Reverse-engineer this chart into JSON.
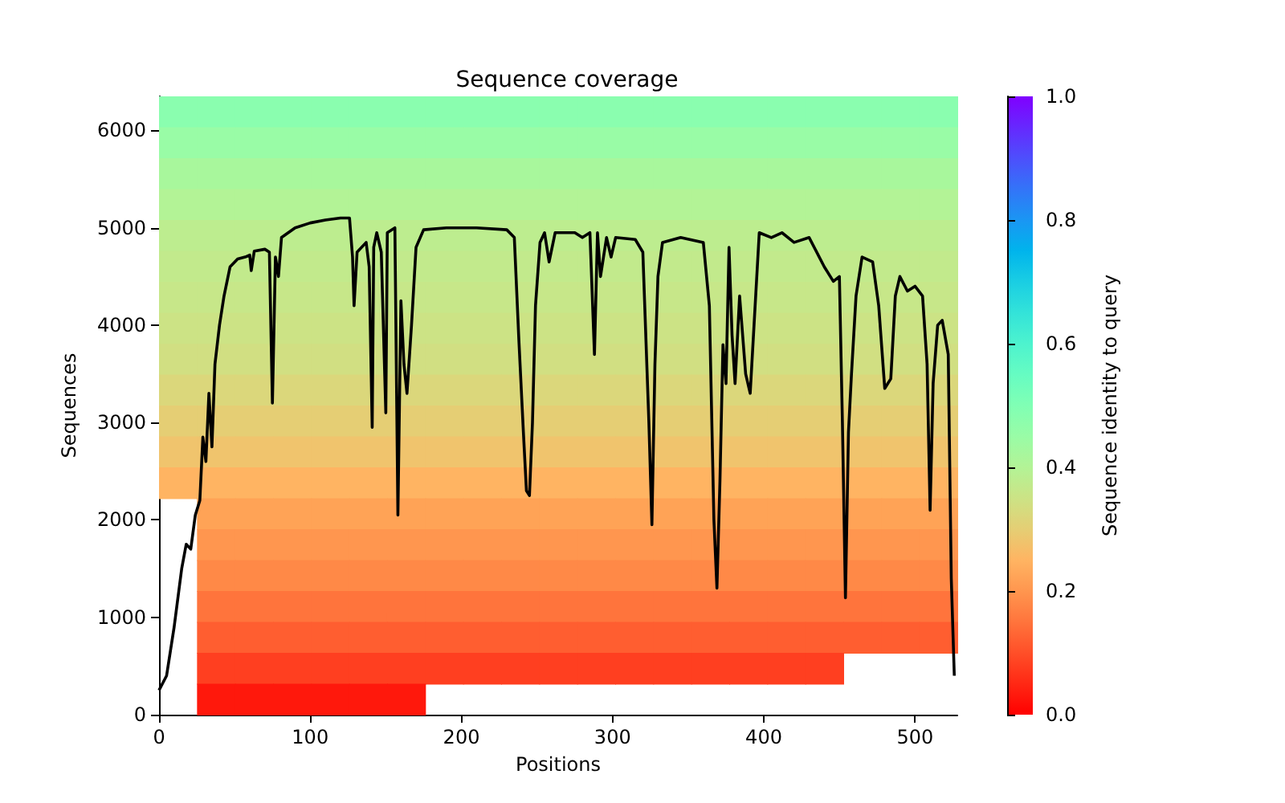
{
  "chart_data": {
    "type": "heatmap",
    "title": "Sequence coverage",
    "xlabel": "Positions",
    "ylabel": "Sequences",
    "clabel": "Sequence identity to query",
    "xlim": [
      0,
      528
    ],
    "xticks": [
      0,
      100,
      200,
      300,
      400,
      500
    ],
    "ylim": [
      0,
      6350
    ],
    "yticks": [
      0,
      1000,
      2000,
      3000,
      4000,
      5000,
      6000
    ],
    "clim": [
      0,
      1
    ],
    "cticks": [
      {
        "value": 0,
        "label": "0.0"
      },
      {
        "value": 0.2,
        "label": "0.2"
      },
      {
        "value": 0.4,
        "label": "0.4"
      },
      {
        "value": 0.6,
        "label": "0.6"
      },
      {
        "value": 0.8,
        "label": "0.8"
      },
      {
        "value": 1,
        "label": "1.0"
      }
    ],
    "cells": [
      [
        0.48,
        0.48,
        0.48,
        0.48,
        0.48,
        0.48,
        0.48,
        0.48,
        0.48,
        0.48,
        0.48,
        0.48,
        0.48,
        0.48,
        0.48,
        0.48,
        0.48,
        0.48,
        0.48,
        0.48,
        0.48
      ],
      [
        0.45,
        0.45,
        0.45,
        0.45,
        0.45,
        0.45,
        0.45,
        0.45,
        0.45,
        0.45,
        0.45,
        0.45,
        0.45,
        0.45,
        0.45,
        0.45,
        0.45,
        0.45,
        0.45,
        0.45,
        0.45
      ],
      [
        0.42,
        0.42,
        0.42,
        0.42,
        0.42,
        0.42,
        0.42,
        0.42,
        0.42,
        0.42,
        0.42,
        0.42,
        0.42,
        0.42,
        0.42,
        0.42,
        0.42,
        0.42,
        0.42,
        0.42,
        0.42
      ],
      [
        0.4,
        0.4,
        0.4,
        0.4,
        0.4,
        0.4,
        0.4,
        0.4,
        0.4,
        0.4,
        0.4,
        0.4,
        0.4,
        0.4,
        0.4,
        0.4,
        0.4,
        0.4,
        0.4,
        0.4,
        0.4
      ],
      [
        0.38,
        0.38,
        0.38,
        0.38,
        0.38,
        0.38,
        0.38,
        0.38,
        0.38,
        0.38,
        0.38,
        0.38,
        0.38,
        0.38,
        0.38,
        0.38,
        0.38,
        0.38,
        0.38,
        0.38,
        0.38
      ],
      [
        0.37,
        0.37,
        0.37,
        0.37,
        0.37,
        0.37,
        0.37,
        0.37,
        0.37,
        0.37,
        0.37,
        0.37,
        0.37,
        0.37,
        0.37,
        0.37,
        0.37,
        0.37,
        0.37,
        0.37,
        0.37
      ],
      [
        0.36,
        0.36,
        0.36,
        0.36,
        0.36,
        0.36,
        0.36,
        0.36,
        0.36,
        0.36,
        0.36,
        0.36,
        0.36,
        0.36,
        0.36,
        0.36,
        0.36,
        0.36,
        0.36,
        0.36,
        0.36
      ],
      [
        0.35,
        0.35,
        0.35,
        0.35,
        0.35,
        0.35,
        0.35,
        0.35,
        0.35,
        0.35,
        0.35,
        0.35,
        0.35,
        0.35,
        0.35,
        0.35,
        0.35,
        0.35,
        0.35,
        0.35,
        0.35
      ],
      [
        0.34,
        0.34,
        0.34,
        0.34,
        0.34,
        0.34,
        0.34,
        0.34,
        0.34,
        0.34,
        0.34,
        0.34,
        0.34,
        0.34,
        0.34,
        0.34,
        0.34,
        0.34,
        0.34,
        0.34,
        0.34
      ],
      [
        0.32,
        0.32,
        0.32,
        0.32,
        0.32,
        0.32,
        0.32,
        0.32,
        0.32,
        0.32,
        0.32,
        0.32,
        0.32,
        0.32,
        0.32,
        0.32,
        0.32,
        0.32,
        0.32,
        0.32,
        0.32
      ],
      [
        0.3,
        0.3,
        0.3,
        0.3,
        0.3,
        0.3,
        0.3,
        0.3,
        0.3,
        0.3,
        0.3,
        0.3,
        0.3,
        0.3,
        0.3,
        0.3,
        0.3,
        0.3,
        0.3,
        0.3,
        0.3
      ],
      [
        0.28,
        0.28,
        0.28,
        0.28,
        0.28,
        0.28,
        0.28,
        0.28,
        0.28,
        0.28,
        0.28,
        0.28,
        0.28,
        0.28,
        0.28,
        0.28,
        0.28,
        0.28,
        0.28,
        0.28,
        0.28
      ],
      [
        0.25,
        0.25,
        0.25,
        0.25,
        0.25,
        0.25,
        0.25,
        0.25,
        0.25,
        0.25,
        0.25,
        0.25,
        0.25,
        0.25,
        0.25,
        0.25,
        0.25,
        0.25,
        0.25,
        0.25,
        0.25
      ],
      [
        null,
        0.22,
        0.22,
        0.22,
        0.22,
        0.22,
        0.22,
        0.22,
        0.22,
        0.22,
        0.22,
        0.22,
        0.22,
        0.22,
        0.22,
        0.22,
        0.22,
        0.22,
        0.22,
        0.22,
        0.22
      ],
      [
        null,
        0.2,
        0.2,
        0.2,
        0.2,
        0.2,
        0.2,
        0.2,
        0.2,
        0.2,
        0.2,
        0.2,
        0.2,
        0.2,
        0.2,
        0.2,
        0.2,
        0.2,
        0.2,
        0.2,
        0.2
      ],
      [
        null,
        0.18,
        0.18,
        0.18,
        0.18,
        0.18,
        0.18,
        0.18,
        0.18,
        0.18,
        0.18,
        0.18,
        0.18,
        0.18,
        0.18,
        0.18,
        0.18,
        0.18,
        0.18,
        0.18,
        0.18
      ],
      [
        null,
        0.15,
        0.15,
        0.15,
        0.15,
        0.15,
        0.15,
        0.15,
        0.15,
        0.15,
        0.15,
        0.15,
        0.15,
        0.15,
        0.15,
        0.15,
        0.15,
        0.15,
        0.15,
        0.15,
        0.15
      ],
      [
        null,
        0.12,
        0.12,
        0.12,
        0.12,
        0.12,
        0.12,
        0.12,
        0.12,
        0.12,
        0.12,
        0.12,
        0.12,
        0.12,
        0.12,
        0.12,
        0.12,
        0.12,
        0.12,
        0.12,
        0.12
      ],
      [
        null,
        0.08,
        0.08,
        0.08,
        0.08,
        0.08,
        0.08,
        0.08,
        0.08,
        0.08,
        0.08,
        0.08,
        0.08,
        0.08,
        0.08,
        0.08,
        0.08,
        0.08,
        null,
        null,
        null
      ],
      [
        null,
        0.03,
        0.03,
        0.03,
        0.03,
        0.03,
        0.03,
        null,
        null,
        null,
        null,
        null,
        null,
        null,
        null,
        null,
        null,
        null,
        null,
        null,
        null
      ]
    ],
    "marker": "none",
    "series": [
      {
        "type": "line",
        "color": "#000000",
        "x": [
          0,
          5,
          10,
          15,
          18,
          21,
          24,
          27,
          29,
          31,
          33,
          35,
          37,
          40,
          43,
          47,
          52,
          57,
          60,
          61,
          63,
          70,
          73,
          75,
          77,
          79,
          81,
          90,
          100,
          110,
          120,
          126,
          128,
          129,
          131,
          137,
          139,
          141,
          142,
          144,
          147,
          150,
          151,
          156,
          158,
          160,
          162,
          164,
          167,
          170,
          175,
          190,
          210,
          230,
          235,
          238,
          241,
          243,
          245,
          247,
          249,
          252,
          255,
          258,
          262,
          275,
          280,
          285,
          288,
          290,
          292,
          296,
          299,
          302,
          315,
          320,
          324,
          326,
          328,
          330,
          333,
          345,
          360,
          364,
          367,
          369,
          371,
          373,
          375,
          377,
          379,
          381,
          384,
          388,
          391,
          395,
          397,
          405,
          412,
          420,
          430,
          440,
          446,
          450,
          452,
          454,
          456,
          458,
          461,
          465,
          472,
          476,
          480,
          484,
          487,
          490,
          495,
          500,
          505,
          508,
          510,
          512,
          515,
          518,
          522,
          524,
          526
        ],
        "values": [
          250,
          400,
          900,
          1500,
          1750,
          1700,
          2050,
          2200,
          2850,
          2600,
          3300,
          2750,
          3600,
          4000,
          4300,
          4600,
          4680,
          4700,
          4720,
          4560,
          4760,
          4780,
          4750,
          3200,
          4700,
          4500,
          4900,
          5000,
          5050,
          5080,
          5100,
          5100,
          4700,
          4200,
          4750,
          4850,
          4600,
          2950,
          4800,
          4950,
          4750,
          3100,
          4950,
          5000,
          2050,
          4250,
          3600,
          3300,
          4000,
          4800,
          4980,
          5000,
          5000,
          4980,
          4900,
          3850,
          2900,
          2300,
          2250,
          3000,
          4200,
          4850,
          4950,
          4650,
          4950,
          4950,
          4900,
          4950,
          3700,
          4950,
          4500,
          4900,
          4700,
          4900,
          4880,
          4750,
          3000,
          1950,
          3600,
          4500,
          4850,
          4900,
          4850,
          4200,
          2000,
          1300,
          2400,
          3800,
          3400,
          4800,
          3900,
          3400,
          4300,
          3500,
          3300,
          4400,
          4950,
          4900,
          4950,
          4850,
          4900,
          4600,
          4450,
          4500,
          3000,
          1200,
          2900,
          3500,
          4300,
          4700,
          4650,
          4200,
          3350,
          3450,
          4300,
          4500,
          4350,
          4400,
          4300,
          3600,
          2100,
          3400,
          4000,
          4050,
          3700,
          1400,
          400
        ]
      }
    ]
  }
}
